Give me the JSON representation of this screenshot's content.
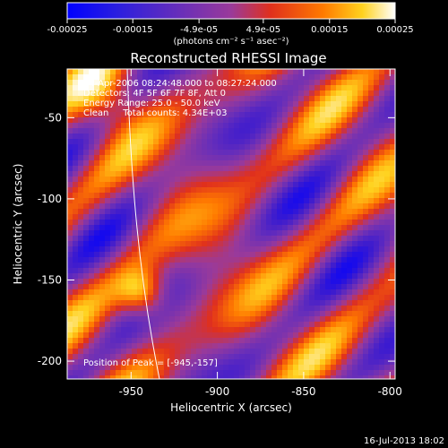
{
  "chart_data": {
    "type": "heatmap",
    "title": "Reconstructed RHESSI Image",
    "xlabel": "Heliocentric X (arcsec)",
    "ylabel": "Heliocentric Y (arcsec)",
    "colorbar": {
      "ticks": [
        "-0.00025",
        "-0.00015",
        "-4.9e-05",
        "4.9e-05",
        "0.00015",
        "0.00025"
      ],
      "tick_values": [
        -0.00025,
        -0.00015,
        -4.9e-05,
        4.9e-05,
        0.00015,
        0.00025
      ],
      "range": [
        -0.00025,
        0.00025
      ],
      "units": "(photons cm⁻² s⁻¹ asec⁻²)"
    },
    "x_ticks": [
      "-950",
      "-900",
      "-850",
      "-800"
    ],
    "x_tick_values": [
      -950,
      -900,
      -850,
      -800
    ],
    "y_ticks": [
      "-50",
      "-100",
      "-150",
      "-200"
    ],
    "y_tick_values": [
      -50,
      -100,
      -150,
      -200
    ],
    "xlim": [
      -987,
      -797
    ],
    "ylim": [
      -211,
      -20
    ],
    "annotations": [
      "24-Apr-2006 08:24:48.000 to 08:27:24.000",
      "Detectors: 4F 5F 6F 7F 8F, Att 0",
      "Energy Range: 25.0 - 50.0 keV",
      "Clean     Total counts: 4.34E+03"
    ],
    "peak_label": "Position of Peak = [-945,-157]",
    "peak": [
      -945,
      -157
    ],
    "limb_color": "#ffffff",
    "colormap": [
      "#0000ff",
      "#3a1ad0",
      "#6a2fb8",
      "#9a3a9a",
      "#e0301c",
      "#ff7a00",
      "#ffd21e",
      "#ffffff"
    ]
  },
  "footer_timestamp": "16-Jul-2013 18:02"
}
